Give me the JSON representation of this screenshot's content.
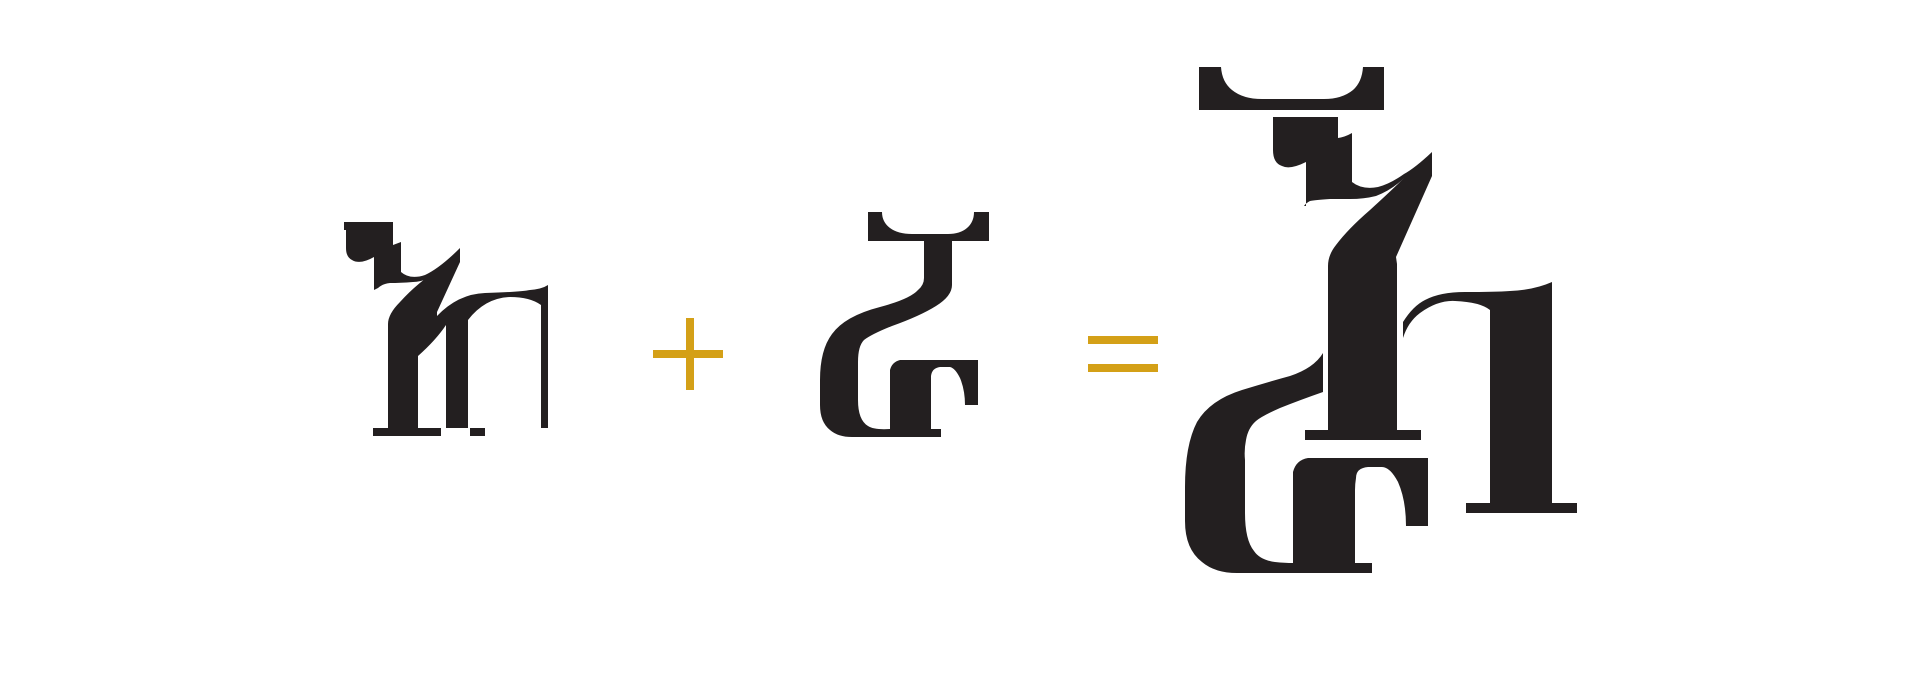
{
  "colors": {
    "background": "#ffffff",
    "glyph": "#231f20",
    "operator": "#d4a017"
  },
  "figure": {
    "operands": [
      {
        "name": "glyph-part-a-icon"
      },
      {
        "name": "glyph-part-b-icon"
      }
    ],
    "operators": [
      "plus-sign-icon",
      "equals-sign-icon"
    ],
    "result": {
      "name": "combined-glyph-icon"
    }
  }
}
